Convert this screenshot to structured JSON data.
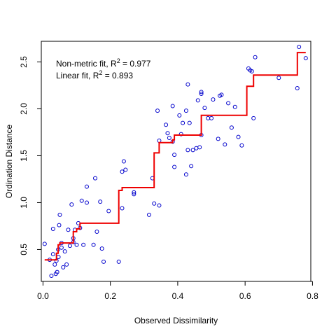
{
  "chart_data": {
    "type": "scatter",
    "title": "",
    "xlabel": "Observed Dissimilarity",
    "ylabel": "Ordination Distance",
    "xlim": [
      -0.005,
      0.795
    ],
    "ylim": [
      0.16,
      2.72
    ],
    "xticks": [
      0.0,
      0.2,
      0.4,
      0.6,
      0.8
    ],
    "xtick_labels": [
      "0.0",
      "0.2",
      "0.4",
      "0.6",
      "0.8"
    ],
    "yticks": [
      0.5,
      1.0,
      1.5,
      2.0,
      2.5
    ],
    "ytick_labels": [
      "0.5",
      "1.0",
      "1.5",
      "2.0",
      "2.5"
    ],
    "grid": false,
    "annotations": [
      {
        "prefix": "Non-metric fit, R",
        "sup": "2",
        "suffix": " = 0.977"
      },
      {
        "prefix": "Linear fit, R",
        "sup": "2",
        "suffix": " = 0.893"
      }
    ],
    "point_color": "#0000cc",
    "line_color": "#ee0000",
    "points": [
      [
        0.005,
        0.56
      ],
      [
        0.02,
        0.39
      ],
      [
        0.025,
        0.22
      ],
      [
        0.03,
        0.72
      ],
      [
        0.03,
        0.45
      ],
      [
        0.035,
        0.34
      ],
      [
        0.038,
        0.24
      ],
      [
        0.04,
        0.38
      ],
      [
        0.042,
        0.26
      ],
      [
        0.045,
        0.5
      ],
      [
        0.046,
        0.42
      ],
      [
        0.048,
        0.76
      ],
      [
        0.05,
        0.87
      ],
      [
        0.055,
        0.52
      ],
      [
        0.055,
        0.57
      ],
      [
        0.06,
        0.31
      ],
      [
        0.065,
        0.48
      ],
      [
        0.07,
        0.34
      ],
      [
        0.075,
        0.71
      ],
      [
        0.08,
        0.54
      ],
      [
        0.085,
        0.98
      ],
      [
        0.09,
        0.58
      ],
      [
        0.09,
        0.62
      ],
      [
        0.095,
        0.71
      ],
      [
        0.1,
        0.55
      ],
      [
        0.105,
        0.78
      ],
      [
        0.11,
        0.73
      ],
      [
        0.115,
        1.02
      ],
      [
        0.12,
        0.55
      ],
      [
        0.13,
        1.0
      ],
      [
        0.13,
        1.17
      ],
      [
        0.15,
        0.55
      ],
      [
        0.155,
        1.26
      ],
      [
        0.16,
        0.69
      ],
      [
        0.17,
        1.01
      ],
      [
        0.175,
        0.51
      ],
      [
        0.18,
        0.37
      ],
      [
        0.195,
        0.91
      ],
      [
        0.225,
        0.37
      ],
      [
        0.235,
        0.94
      ],
      [
        0.235,
        1.33
      ],
      [
        0.24,
        1.44
      ],
      [
        0.245,
        1.35
      ],
      [
        0.27,
        1.09
      ],
      [
        0.27,
        1.11
      ],
      [
        0.315,
        0.87
      ],
      [
        0.325,
        1.26
      ],
      [
        0.33,
        0.99
      ],
      [
        0.34,
        1.98
      ],
      [
        0.345,
        0.97
      ],
      [
        0.345,
        1.66
      ],
      [
        0.365,
        1.83
      ],
      [
        0.37,
        1.74
      ],
      [
        0.375,
        1.69
      ],
      [
        0.385,
        1.65
      ],
      [
        0.385,
        2.03
      ],
      [
        0.39,
        1.38
      ],
      [
        0.39,
        1.51
      ],
      [
        0.405,
        1.93
      ],
      [
        0.41,
        1.73
      ],
      [
        0.415,
        1.85
      ],
      [
        0.425,
        1.3
      ],
      [
        0.425,
        1.98
      ],
      [
        0.43,
        2.26
      ],
      [
        0.43,
        1.56
      ],
      [
        0.435,
        1.85
      ],
      [
        0.44,
        1.39
      ],
      [
        0.445,
        1.56
      ],
      [
        0.455,
        1.58
      ],
      [
        0.46,
        2.09
      ],
      [
        0.465,
        1.59
      ],
      [
        0.47,
        2.16
      ],
      [
        0.47,
        2.18
      ],
      [
        0.47,
        1.72
      ],
      [
        0.48,
        2.01
      ],
      [
        0.49,
        1.9
      ],
      [
        0.5,
        1.9
      ],
      [
        0.505,
        2.1
      ],
      [
        0.52,
        1.68
      ],
      [
        0.525,
        2.14
      ],
      [
        0.53,
        2.15
      ],
      [
        0.54,
        1.62
      ],
      [
        0.55,
        2.06
      ],
      [
        0.56,
        1.8
      ],
      [
        0.57,
        2.02
      ],
      [
        0.58,
        1.7
      ],
      [
        0.59,
        1.61
      ],
      [
        0.61,
        2.43
      ],
      [
        0.615,
        2.41
      ],
      [
        0.62,
        2.4
      ],
      [
        0.625,
        1.9
      ],
      [
        0.63,
        2.55
      ],
      [
        0.7,
        2.33
      ],
      [
        0.755,
        2.22
      ],
      [
        0.76,
        2.66
      ],
      [
        0.78,
        2.54
      ]
    ],
    "step_fit": [
      [
        0.005,
        0.39
      ],
      [
        0.04,
        0.39
      ],
      [
        0.04,
        0.46
      ],
      [
        0.045,
        0.46
      ],
      [
        0.045,
        0.55
      ],
      [
        0.05,
        0.55
      ],
      [
        0.05,
        0.57
      ],
      [
        0.09,
        0.57
      ],
      [
        0.09,
        0.69
      ],
      [
        0.1,
        0.69
      ],
      [
        0.1,
        0.72
      ],
      [
        0.11,
        0.72
      ],
      [
        0.11,
        0.78
      ],
      [
        0.225,
        0.78
      ],
      [
        0.225,
        1.13
      ],
      [
        0.235,
        1.13
      ],
      [
        0.235,
        1.16
      ],
      [
        0.33,
        1.16
      ],
      [
        0.33,
        1.53
      ],
      [
        0.345,
        1.53
      ],
      [
        0.345,
        1.64
      ],
      [
        0.385,
        1.64
      ],
      [
        0.385,
        1.67
      ],
      [
        0.39,
        1.67
      ],
      [
        0.39,
        1.72
      ],
      [
        0.47,
        1.72
      ],
      [
        0.47,
        1.93
      ],
      [
        0.605,
        1.93
      ],
      [
        0.605,
        2.24
      ],
      [
        0.625,
        2.24
      ],
      [
        0.625,
        2.36
      ],
      [
        0.755,
        2.36
      ],
      [
        0.755,
        2.6
      ],
      [
        0.78,
        2.6
      ]
    ]
  }
}
